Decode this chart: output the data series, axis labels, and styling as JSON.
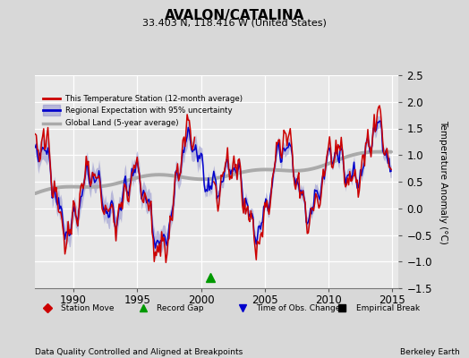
{
  "title": "AVALON/CATALINA",
  "subtitle": "33.403 N, 118.416 W (United States)",
  "ylabel": "Temperature Anomaly (°C)",
  "xlabel_bottom": "Data Quality Controlled and Aligned at Breakpoints",
  "xlabel_right": "Berkeley Earth",
  "ylim": [
    -1.5,
    2.5
  ],
  "xlim": [
    1987.0,
    2015.5
  ],
  "yticks": [
    -1.5,
    -1.0,
    -0.5,
    0.0,
    0.5,
    1.0,
    1.5,
    2.0,
    2.5
  ],
  "xticks": [
    1990,
    1995,
    2000,
    2005,
    2010,
    2015
  ],
  "bg_color": "#d8d8d8",
  "plot_bg_color": "#e8e8e8",
  "grid_color": "#ffffff",
  "red_color": "#cc0000",
  "blue_color": "#0000cc",
  "blue_fill_color": "#8888cc",
  "gray_color": "#aaaaaa",
  "record_gap_x": 2000.75,
  "record_gap_y": -1.3
}
